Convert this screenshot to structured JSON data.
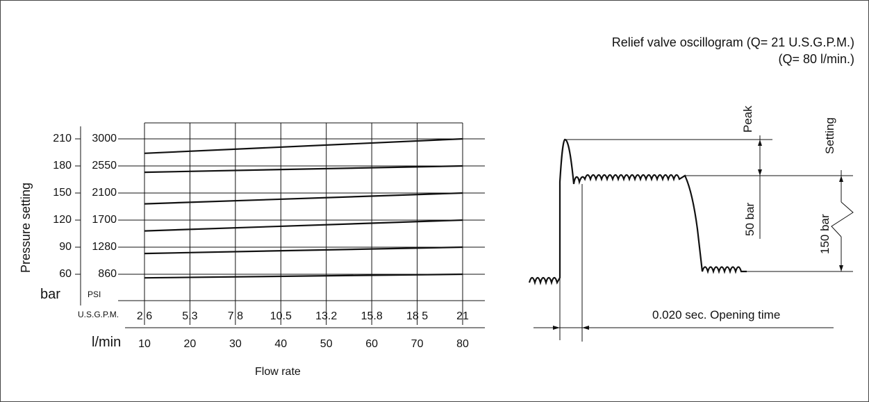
{
  "chart_data": {
    "type": "line",
    "title": "",
    "ylabel": "Pressure setting",
    "xlabel": "Flow rate",
    "bar_unit": "bar",
    "psi_unit": "PSI",
    "gpm_unit": "U.S.G.P.M.",
    "lpm_unit": "l/min",
    "y_bar_ticks": [
      "210",
      "180",
      "150",
      "120",
      "90",
      "60"
    ],
    "y_psi_ticks": [
      "3000",
      "2550",
      "2100",
      "1700",
      "1280",
      "860"
    ],
    "x_gpm_ticks": [
      "2 6",
      "5.3",
      "7 8",
      "10.5",
      "13.2",
      "15.8",
      "18 5",
      "21"
    ],
    "x_lpm_ticks": [
      "10",
      "20",
      "30",
      "40",
      "50",
      "60",
      "70",
      "80"
    ],
    "x": [
      10,
      80
    ],
    "ylim": [
      60,
      210
    ],
    "grid": true,
    "series": [
      {
        "values": [
          56,
          60
        ]
      },
      {
        "values": [
          83,
          90
        ]
      },
      {
        "values": [
          108,
          120
        ]
      },
      {
        "values": [
          138,
          150
        ]
      },
      {
        "values": [
          173,
          180
        ]
      },
      {
        "values": [
          194,
          210
        ]
      }
    ]
  },
  "oscillogram": {
    "title_line1": "Relief valve oscillogram (Q= 21 U.S.G.P.M.)",
    "title_line2": "(Q= 80 l/min.)",
    "peak_label": "Peak",
    "setting_label": "Setting",
    "peak_over_setting": "50 bar",
    "setting_value": "150 bar",
    "opening_time": "0.020 sec. Opening time"
  }
}
